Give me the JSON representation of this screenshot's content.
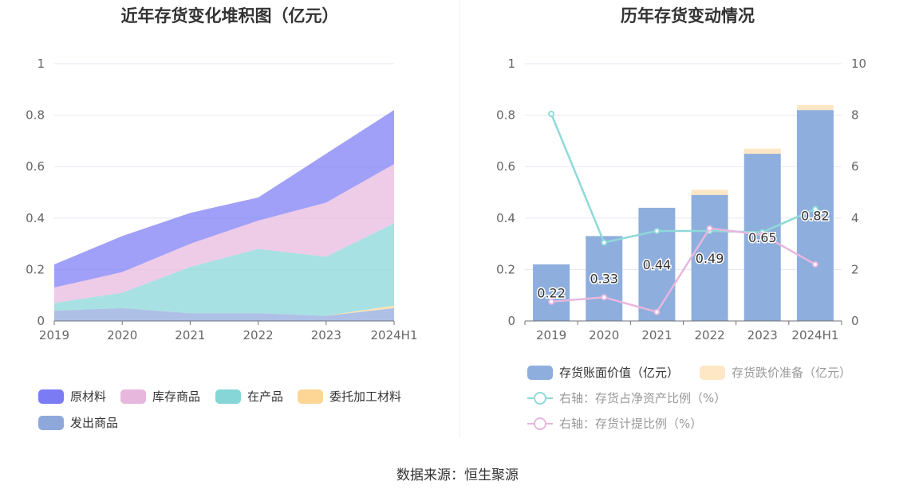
{
  "source_label": "数据来源：恒生聚源",
  "left": {
    "title": "近年存货变化堆积图（亿元）",
    "legend": [
      {
        "label": "原材料",
        "color": "#7b7bf5"
      },
      {
        "label": "库存商品",
        "color": "#e8b7de"
      },
      {
        "label": "在产品",
        "color": "#86d6d8"
      },
      {
        "label": "委托加工材料",
        "color": "#fdd696"
      },
      {
        "label": "发出商品",
        "color": "#8fa8dc"
      }
    ]
  },
  "right": {
    "title": "历年存货变动情况",
    "legend": [
      {
        "label": "存货账面价值（亿元）",
        "color": "#8eaedd",
        "kind": "bar"
      },
      {
        "label": "存货跌价准备（亿元）",
        "color": "#fde7c4",
        "kind": "bar"
      },
      {
        "label": "右轴：存货占净资产比例（%）",
        "color": "#8fd9d9",
        "kind": "line"
      },
      {
        "label": "右轴：存货计提比例（%）",
        "color": "#e8b7de",
        "kind": "line"
      }
    ]
  },
  "chart_data": [
    {
      "type": "area",
      "stacked": true,
      "title": "近年存货变化堆积图（亿元）",
      "categories": [
        "2019",
        "2020",
        "2021",
        "2022",
        "2023",
        "2024H1"
      ],
      "ylim": [
        0,
        1
      ],
      "yticks": [
        "0",
        "0.2",
        "0.4",
        "0.6",
        "0.8",
        "1"
      ],
      "grid": true,
      "legend_position": "bottom",
      "series": [
        {
          "name": "发出商品",
          "color": "#8fa8dc",
          "values": [
            0.04,
            0.05,
            0.03,
            0.03,
            0.02,
            0.05
          ]
        },
        {
          "name": "委托加工材料",
          "color": "#fdd696",
          "values": [
            0,
            0,
            0,
            0,
            0,
            0.01
          ]
        },
        {
          "name": "在产品",
          "color": "#86d6d8",
          "values": [
            0.03,
            0.06,
            0.18,
            0.25,
            0.23,
            0.32
          ]
        },
        {
          "name": "库存商品",
          "color": "#e8b7de",
          "values": [
            0.06,
            0.08,
            0.09,
            0.11,
            0.21,
            0.23
          ]
        },
        {
          "name": "原材料",
          "color": "#7b7bf5",
          "values": [
            0.09,
            0.14,
            0.12,
            0.09,
            0.19,
            0.21
          ]
        }
      ]
    },
    {
      "type": "bar",
      "stacked": true,
      "title": "历年存货变动情况",
      "categories": [
        "2019",
        "2020",
        "2021",
        "2022",
        "2023",
        "2024H1"
      ],
      "ylim": [
        0,
        1
      ],
      "yticks": [
        "0",
        "0.2",
        "0.4",
        "0.6",
        "0.8",
        "1"
      ],
      "y2lim": [
        0,
        10
      ],
      "y2ticks": [
        "0",
        "2",
        "4",
        "6",
        "8",
        "10"
      ],
      "grid": true,
      "legend_position": "bottom",
      "series": [
        {
          "name": "存货账面价值（亿元）",
          "type": "bar",
          "color": "#8eaedd",
          "values": [
            0.22,
            0.33,
            0.44,
            0.49,
            0.65,
            0.82
          ],
          "labels": [
            "0.22",
            "0.33",
            "0.44",
            "0.49",
            "0.65",
            "0.82"
          ]
        },
        {
          "name": "存货跌价准备（亿元）",
          "type": "bar",
          "color": "#fde7c4",
          "values": [
            0,
            0,
            0,
            0.02,
            0.02,
            0.02
          ]
        },
        {
          "name": "右轴：存货占净资产比例（%）",
          "type": "line",
          "axis": "right",
          "color": "#8fd9d9",
          "values": [
            8.05,
            3.05,
            3.5,
            3.5,
            3.45,
            4.35
          ]
        },
        {
          "name": "右轴：存货计提比例（%）",
          "type": "line",
          "axis": "right",
          "color": "#e8b7de",
          "values": [
            0.75,
            0.92,
            0.35,
            3.6,
            3.35,
            2.2
          ]
        }
      ]
    }
  ]
}
